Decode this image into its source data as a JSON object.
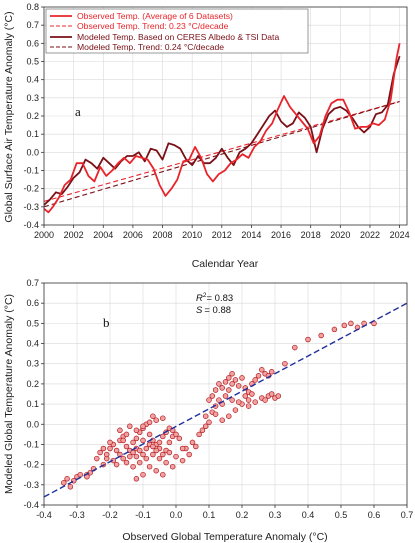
{
  "colors": {
    "observed": "#e8242a",
    "modeled": "#7a1018",
    "fit": "#1e2f9e",
    "scatter_fill": "#f2a0a0",
    "scatter_edge": "#b01c22"
  },
  "chart_data": [
    {
      "type": "line",
      "panel_letter": "a",
      "xlabel": "Calendar Year",
      "ylabel": "Global Surface Air Temperature Anomaly (°C)",
      "xlim": [
        2000,
        2024.5
      ],
      "ylim": [
        -0.4,
        0.8
      ],
      "xticks": [
        2000,
        2002,
        2004,
        2006,
        2008,
        2010,
        2012,
        2014,
        2016,
        2018,
        2020,
        2022,
        2024
      ],
      "yticks": [
        -0.4,
        -0.3,
        -0.2,
        -0.1,
        0.0,
        0.1,
        0.2,
        0.3,
        0.4,
        0.5,
        0.6,
        0.7,
        0.8
      ],
      "legend_position": "top-left",
      "grid": true,
      "series": [
        {
          "name": "Observed Temp. (Average of 6 Datasets)",
          "style": "solid",
          "x": [
            2000.0,
            2000.3,
            2000.6,
            2001.0,
            2001.4,
            2001.8,
            2002.2,
            2002.6,
            2003.0,
            2003.4,
            2003.8,
            2004.2,
            2004.6,
            2005.0,
            2005.4,
            2005.8,
            2006.2,
            2006.6,
            2007.0,
            2007.4,
            2007.8,
            2008.2,
            2008.6,
            2009.0,
            2009.4,
            2009.8,
            2010.2,
            2010.6,
            2011.0,
            2011.4,
            2011.8,
            2012.2,
            2012.6,
            2013.0,
            2013.4,
            2013.8,
            2014.2,
            2014.6,
            2015.0,
            2015.4,
            2015.8,
            2016.2,
            2016.6,
            2017.0,
            2017.4,
            2017.8,
            2018.2,
            2018.6,
            2019.0,
            2019.4,
            2019.8,
            2020.2,
            2020.6,
            2021.0,
            2021.4,
            2021.8,
            2022.2,
            2022.6,
            2023.0,
            2023.4,
            2023.8,
            2024.0
          ],
          "y": [
            -0.31,
            -0.33,
            -0.3,
            -0.25,
            -0.18,
            -0.15,
            -0.06,
            -0.06,
            -0.13,
            -0.16,
            -0.08,
            -0.13,
            -0.1,
            -0.06,
            -0.03,
            -0.06,
            -0.02,
            -0.03,
            -0.04,
            -0.09,
            -0.18,
            -0.24,
            -0.2,
            -0.15,
            -0.05,
            -0.04,
            0.03,
            -0.03,
            -0.12,
            -0.16,
            -0.12,
            -0.1,
            -0.06,
            -0.04,
            -0.01,
            -0.03,
            0.03,
            0.06,
            0.12,
            0.16,
            0.24,
            0.31,
            0.25,
            0.21,
            0.17,
            0.13,
            0.05,
            0.09,
            0.2,
            0.27,
            0.29,
            0.29,
            0.22,
            0.13,
            0.14,
            0.14,
            0.16,
            0.15,
            0.18,
            0.29,
            0.52,
            0.6
          ]
        },
        {
          "name": "Observed Temp. Trend: 0.23 °C/decade",
          "style": "dashed",
          "x": [
            2000,
            2024
          ],
          "y": [
            -0.27,
            0.28
          ]
        },
        {
          "name": "Modeled Temp. Based on CERES Albedo & TSI Data",
          "style": "solid",
          "x": [
            2000.0,
            2000.4,
            2000.8,
            2001.2,
            2001.6,
            2002.0,
            2002.4,
            2002.8,
            2003.2,
            2003.6,
            2004.0,
            2004.4,
            2004.8,
            2005.2,
            2005.6,
            2006.0,
            2006.4,
            2006.8,
            2007.2,
            2007.6,
            2008.0,
            2008.4,
            2008.8,
            2009.2,
            2009.6,
            2010.0,
            2010.4,
            2010.8,
            2011.2,
            2011.6,
            2012.0,
            2012.4,
            2012.8,
            2013.2,
            2013.6,
            2014.0,
            2014.4,
            2014.8,
            2015.2,
            2015.6,
            2016.0,
            2016.4,
            2016.8,
            2017.2,
            2017.6,
            2018.0,
            2018.4,
            2018.8,
            2019.2,
            2019.6,
            2020.0,
            2020.4,
            2020.8,
            2021.2,
            2021.6,
            2022.0,
            2022.4,
            2022.8,
            2023.2,
            2023.6,
            2024.0
          ],
          "y": [
            -0.29,
            -0.26,
            -0.22,
            -0.23,
            -0.19,
            -0.14,
            -0.11,
            -0.04,
            -0.06,
            -0.09,
            -0.03,
            -0.06,
            -0.09,
            -0.05,
            -0.02,
            -0.02,
            0.0,
            -0.05,
            0.02,
            0.01,
            -0.04,
            0.05,
            0.04,
            0.02,
            -0.04,
            -0.07,
            -0.02,
            -0.06,
            -0.06,
            -0.03,
            0.02,
            -0.03,
            -0.07,
            0.0,
            0.02,
            0.05,
            0.1,
            0.15,
            0.2,
            0.23,
            0.17,
            0.14,
            0.16,
            0.22,
            0.19,
            0.14,
            0.0,
            0.13,
            0.21,
            0.24,
            0.25,
            0.23,
            0.19,
            0.14,
            0.11,
            0.14,
            0.21,
            0.22,
            0.26,
            0.43,
            0.53
          ]
        },
        {
          "name": "Modeled Temp. Trend: 0.24 °C/decade",
          "style": "dashed",
          "x": [
            2000,
            2024
          ],
          "y": [
            -0.3,
            0.28
          ]
        }
      ]
    },
    {
      "type": "scatter",
      "panel_letter": "b",
      "xlabel": "Observed Global Temperature Anomaly (°C)",
      "ylabel": "Modeled Global Temperature Anomaly (°C)",
      "xlim": [
        -0.4,
        0.7
      ],
      "ylim": [
        -0.4,
        0.7
      ],
      "xticks": [
        -0.4,
        -0.3,
        -0.2,
        -0.1,
        0.0,
        0.1,
        0.2,
        0.3,
        0.4,
        0.5,
        0.6,
        0.7
      ],
      "yticks": [
        -0.4,
        -0.3,
        -0.2,
        -0.1,
        0.0,
        0.1,
        0.2,
        0.3,
        0.4,
        0.5,
        0.6,
        0.7
      ],
      "ytick_labels": [
        "-0.4",
        "-0.3",
        "-0.2",
        "-0.1",
        "0.0",
        "0.1",
        "0.2",
        "0.3",
        "0.4",
        "0.5",
        "0.6",
        "0.7"
      ],
      "grid": true,
      "stats": {
        "r2_symbol": "R",
        "r2_value": "= 0.83",
        "s_symbol": "S",
        "s_value": "= 0.88"
      },
      "fit_line": {
        "x": [
          -0.4,
          0.7
        ],
        "y": [
          -0.36,
          0.6
        ]
      },
      "points": [
        [
          -0.34,
          -0.29
        ],
        [
          -0.33,
          -0.27
        ],
        [
          -0.31,
          -0.28
        ],
        [
          -0.3,
          -0.26
        ],
        [
          -0.29,
          -0.25
        ],
        [
          -0.27,
          -0.25
        ],
        [
          -0.25,
          -0.22
        ],
        [
          -0.27,
          -0.26
        ],
        [
          -0.32,
          -0.31
        ],
        [
          -0.22,
          -0.2
        ],
        [
          -0.21,
          -0.17
        ],
        [
          -0.2,
          -0.12
        ],
        [
          -0.19,
          -0.1
        ],
        [
          -0.17,
          -0.08
        ],
        [
          -0.16,
          -0.06
        ],
        [
          -0.15,
          -0.11
        ],
        [
          -0.14,
          -0.13
        ],
        [
          -0.13,
          -0.09
        ],
        [
          -0.12,
          -0.07
        ],
        [
          -0.11,
          -0.04
        ],
        [
          -0.1,
          -0.02
        ],
        [
          -0.09,
          0.0
        ],
        [
          -0.08,
          -0.05
        ],
        [
          -0.07,
          -0.08
        ],
        [
          -0.06,
          -0.1
        ],
        [
          -0.05,
          -0.12
        ],
        [
          -0.04,
          -0.15
        ],
        [
          -0.03,
          -0.13
        ],
        [
          -0.02,
          -0.09
        ],
        [
          -0.01,
          -0.06
        ],
        [
          -0.18,
          -0.13
        ],
        [
          -0.17,
          -0.15
        ],
        [
          -0.16,
          -0.17
        ],
        [
          -0.15,
          -0.19
        ],
        [
          -0.14,
          -0.16
        ],
        [
          -0.13,
          -0.14
        ],
        [
          -0.12,
          -0.12
        ],
        [
          -0.11,
          -0.13
        ],
        [
          -0.1,
          -0.15
        ],
        [
          -0.09,
          -0.12
        ],
        [
          -0.08,
          -0.1
        ],
        [
          -0.07,
          -0.11
        ],
        [
          -0.06,
          -0.13
        ],
        [
          -0.05,
          -0.09
        ],
        [
          -0.04,
          -0.06
        ],
        [
          -0.03,
          -0.04
        ],
        [
          -0.02,
          -0.02
        ],
        [
          -0.01,
          -0.03
        ],
        [
          0.0,
          -0.05
        ],
        [
          0.01,
          -0.07
        ],
        [
          -0.19,
          -0.18
        ],
        [
          -0.18,
          -0.2
        ],
        [
          -0.13,
          -0.21
        ],
        [
          -0.11,
          -0.19
        ],
        [
          -0.09,
          -0.17
        ],
        [
          -0.07,
          -0.15
        ],
        [
          -0.05,
          -0.17
        ],
        [
          -0.03,
          -0.19
        ],
        [
          -0.01,
          -0.21
        ],
        [
          0.02,
          -0.18
        ],
        [
          0.04,
          -0.15
        ],
        [
          0.03,
          -0.12
        ],
        [
          0.05,
          -0.09
        ],
        [
          0.06,
          -0.11
        ],
        [
          -0.12,
          -0.03
        ],
        [
          -0.1,
          -0.01
        ],
        [
          -0.08,
          0.01
        ],
        [
          -0.06,
          0.02
        ],
        [
          -0.04,
          0.03
        ],
        [
          -0.07,
          0.04
        ],
        [
          -0.15,
          -0.05
        ],
        [
          -0.16,
          -0.08
        ],
        [
          -0.2,
          -0.09
        ],
        [
          -0.22,
          -0.12
        ],
        [
          -0.23,
          -0.14
        ],
        [
          -0.08,
          -0.21
        ],
        [
          -0.06,
          -0.23
        ],
        [
          -0.04,
          -0.25
        ],
        [
          -0.1,
          -0.25
        ],
        [
          -0.12,
          -0.27
        ],
        [
          0.07,
          -0.05
        ],
        [
          0.08,
          -0.03
        ],
        [
          0.09,
          -0.01
        ],
        [
          0.1,
          0.01
        ],
        [
          0.09,
          0.04
        ],
        [
          0.11,
          0.06
        ],
        [
          0.12,
          0.09
        ],
        [
          0.13,
          0.12
        ],
        [
          0.14,
          0.1
        ],
        [
          0.15,
          0.14
        ],
        [
          0.16,
          0.17
        ],
        [
          0.17,
          0.2
        ],
        [
          0.18,
          0.22
        ],
        [
          0.19,
          0.19
        ],
        [
          0.2,
          0.23
        ],
        [
          0.21,
          0.18
        ],
        [
          0.22,
          0.16
        ],
        [
          0.23,
          0.2
        ],
        [
          0.24,
          0.22
        ],
        [
          0.25,
          0.24
        ],
        [
          0.26,
          0.27
        ],
        [
          0.27,
          0.25
        ],
        [
          0.28,
          0.24
        ],
        [
          0.29,
          0.26
        ],
        [
          0.14,
          0.18
        ],
        [
          0.15,
          0.21
        ],
        [
          0.16,
          0.23
        ],
        [
          0.17,
          0.25
        ],
        [
          0.13,
          0.2
        ],
        [
          0.12,
          0.17
        ],
        [
          0.11,
          0.14
        ],
        [
          0.1,
          0.12
        ],
        [
          0.12,
          0.05
        ],
        [
          0.14,
          0.02
        ],
        [
          0.16,
          0.04
        ],
        [
          0.18,
          0.07
        ],
        [
          0.2,
          0.1
        ],
        [
          0.22,
          0.12
        ],
        [
          0.24,
          0.11
        ],
        [
          0.26,
          0.13
        ],
        [
          0.28,
          0.14
        ],
        [
          0.3,
          0.13
        ],
        [
          0.27,
          0.12
        ],
        [
          0.29,
          0.15
        ],
        [
          0.31,
          0.14
        ],
        [
          0.22,
          0.09
        ],
        [
          0.19,
          0.11
        ],
        [
          0.21,
          0.14
        ],
        [
          0.23,
          0.15
        ],
        [
          0.17,
          0.12
        ],
        [
          0.36,
          0.38
        ],
        [
          0.4,
          0.42
        ],
        [
          0.44,
          0.44
        ],
        [
          0.48,
          0.47
        ],
        [
          0.51,
          0.49
        ],
        [
          0.53,
          0.5
        ],
        [
          0.57,
          0.5
        ],
        [
          0.6,
          0.5
        ],
        [
          0.55,
          0.48
        ],
        [
          0.33,
          0.3
        ],
        [
          -0.14,
          -0.01
        ],
        [
          -0.17,
          -0.03
        ],
        [
          -0.12,
          -0.16
        ],
        [
          -0.1,
          -0.08
        ],
        [
          -0.02,
          -0.14
        ],
        [
          0.0,
          -0.16
        ],
        [
          0.02,
          -0.12
        ],
        [
          -0.21,
          -0.15
        ],
        [
          -0.24,
          -0.17
        ],
        [
          -0.26,
          -0.24
        ]
      ]
    }
  ]
}
